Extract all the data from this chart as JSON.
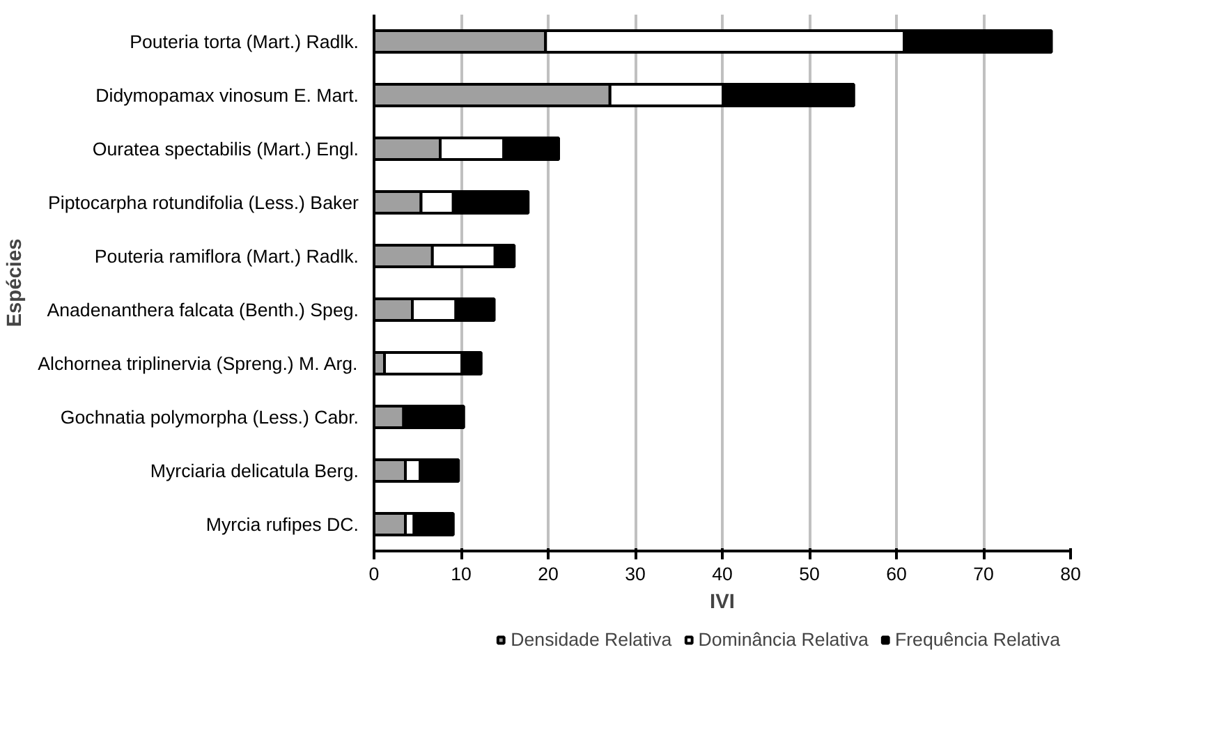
{
  "chart_data": {
    "type": "bar",
    "orientation": "horizontal",
    "stacked": true,
    "xlabel": "IVI",
    "ylabel": "Espécies",
    "categories": [
      "Pouteria torta (Mart.) Radlk.",
      "Didymopamax vinosum E. Mart.",
      "Ouratea spectabilis (Mart.) Engl.",
      "Piptocarpha rotundifolia (Less.) Baker",
      "Pouteria ramiflora (Mart.) Radlk.",
      "Anadenanthera falcata (Benth.) Speg.",
      "Alchornea triplinervia (Spreng.) M. Arg.",
      "Gochnatia polymorpha (Less.) Cabr.",
      "Myrciaria delicatula Berg.",
      "Myrcia rufipes DC."
    ],
    "series": [
      {
        "name": "Densidade Relativa",
        "color": "#a0a0a0",
        "values": [
          19.7,
          27.1,
          7.6,
          5.4,
          6.7,
          4.4,
          1.2,
          3.4,
          3.6,
          3.6
        ]
      },
      {
        "name": "Dominância Relativa",
        "color": "#ffffff",
        "values": [
          41.2,
          13.0,
          7.3,
          3.7,
          7.2,
          5.0,
          8.9,
          null,
          1.7,
          1.0
        ]
      },
      {
        "name": "Frequência Relativa",
        "color": "#000000",
        "values": [
          16.9,
          15.0,
          6.3,
          8.6,
          2.2,
          4.4,
          2.2,
          6.9,
          4.4,
          4.5
        ]
      }
    ],
    "xlim": [
      0,
      80
    ],
    "xticks": [
      0,
      10,
      20,
      30,
      40,
      50,
      60,
      70,
      80
    ],
    "grid": "x",
    "legend": "bottom right"
  }
}
